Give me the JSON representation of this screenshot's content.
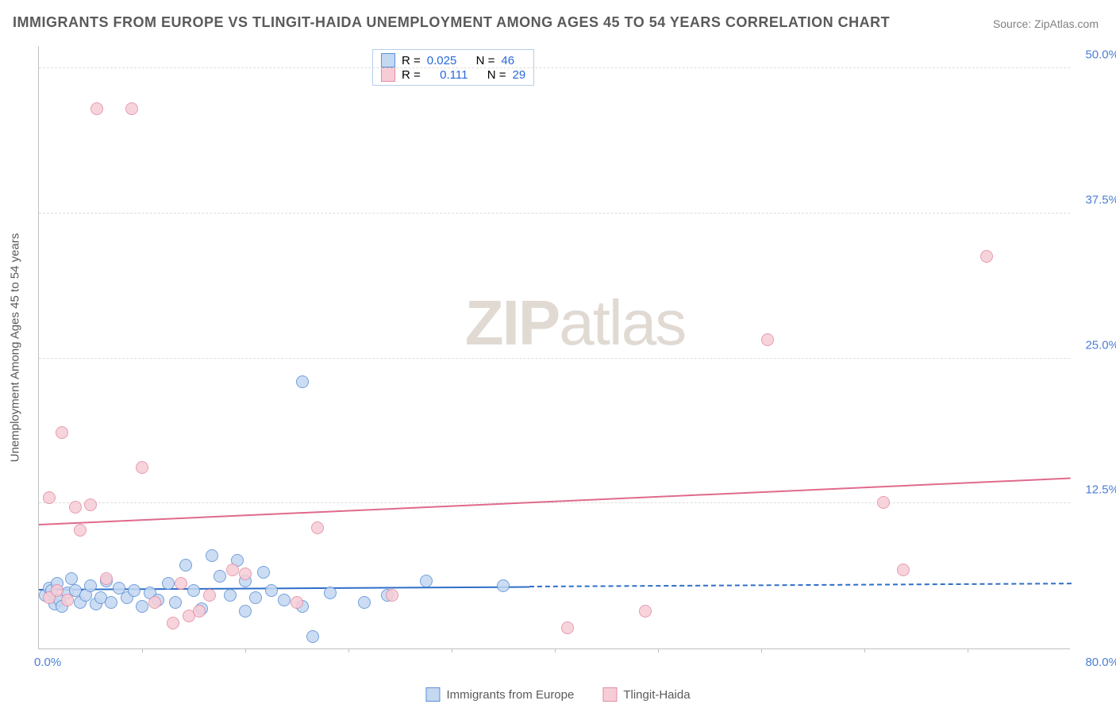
{
  "title": "IMMIGRANTS FROM EUROPE VS TLINGIT-HAIDA UNEMPLOYMENT AMONG AGES 45 TO 54 YEARS CORRELATION CHART",
  "source": "Source: ZipAtlas.com",
  "watermark_a": "ZIP",
  "watermark_b": "atlas",
  "chart": {
    "type": "scatter-with-regression",
    "y_axis_label": "Unemployment Among Ages 45 to 54 years",
    "xlim": [
      0,
      80
    ],
    "ylim": [
      0,
      52
    ],
    "x_origin_label": "0.0%",
    "x_max_label": "80.0%",
    "y_ticks": [
      {
        "value": 12.5,
        "label": "12.5%"
      },
      {
        "value": 25.0,
        "label": "25.0%"
      },
      {
        "value": 37.5,
        "label": "37.5%"
      },
      {
        "value": 50.0,
        "label": "50.0%"
      }
    ],
    "x_tick_positions": [
      8,
      16,
      24,
      32,
      40,
      48,
      56,
      64,
      72
    ],
    "background_color": "#ffffff",
    "grid_color": "#dddddd",
    "axis_color": "#c0c0c0",
    "tick_font_color": "#4a7fd6",
    "point_radius": 8,
    "series": [
      {
        "name": "Immigrants from Europe",
        "legend_label": "Immigrants from Europe",
        "fill": "#c4d8f2",
        "stroke": "#5b8fd6",
        "stats": {
          "R_label": "R =",
          "R": "0.025",
          "N_label": "N =",
          "N": "46"
        },
        "trend": {
          "x1": 0,
          "y1": 5.0,
          "x2": 80,
          "y2": 5.5,
          "solid_until_x": 38,
          "color": "#2f6fc9"
        },
        "points": [
          {
            "x": 0.5,
            "y": 4.6
          },
          {
            "x": 0.8,
            "y": 5.2
          },
          {
            "x": 1.0,
            "y": 5.0
          },
          {
            "x": 1.2,
            "y": 3.8
          },
          {
            "x": 1.4,
            "y": 5.6
          },
          {
            "x": 1.6,
            "y": 4.2
          },
          {
            "x": 1.8,
            "y": 3.6
          },
          {
            "x": 2.2,
            "y": 4.8
          },
          {
            "x": 2.5,
            "y": 6.0
          },
          {
            "x": 2.8,
            "y": 5.0
          },
          {
            "x": 3.2,
            "y": 4.0
          },
          {
            "x": 3.6,
            "y": 4.6
          },
          {
            "x": 4.0,
            "y": 5.4
          },
          {
            "x": 4.4,
            "y": 3.8
          },
          {
            "x": 4.8,
            "y": 4.4
          },
          {
            "x": 5.2,
            "y": 5.8
          },
          {
            "x": 5.6,
            "y": 4.0
          },
          {
            "x": 6.2,
            "y": 5.2
          },
          {
            "x": 6.8,
            "y": 4.4
          },
          {
            "x": 7.4,
            "y": 5.0
          },
          {
            "x": 8.0,
            "y": 3.6
          },
          {
            "x": 8.6,
            "y": 4.8
          },
          {
            "x": 9.2,
            "y": 4.2
          },
          {
            "x": 10.0,
            "y": 5.6
          },
          {
            "x": 10.6,
            "y": 4.0
          },
          {
            "x": 11.4,
            "y": 7.2
          },
          {
            "x": 12.0,
            "y": 5.0
          },
          {
            "x": 12.6,
            "y": 3.4
          },
          {
            "x": 13.4,
            "y": 8.0
          },
          {
            "x": 14.0,
            "y": 6.2
          },
          {
            "x": 14.8,
            "y": 4.6
          },
          {
            "x": 15.4,
            "y": 7.6
          },
          {
            "x": 16.0,
            "y": 3.2
          },
          {
            "x": 16.0,
            "y": 5.8
          },
          {
            "x": 16.8,
            "y": 4.4
          },
          {
            "x": 17.4,
            "y": 6.6
          },
          {
            "x": 18.0,
            "y": 5.0
          },
          {
            "x": 19.0,
            "y": 4.2
          },
          {
            "x": 20.4,
            "y": 3.6
          },
          {
            "x": 20.4,
            "y": 23.0
          },
          {
            "x": 21.2,
            "y": 1.0
          },
          {
            "x": 22.6,
            "y": 4.8
          },
          {
            "x": 25.2,
            "y": 4.0
          },
          {
            "x": 27.0,
            "y": 4.6
          },
          {
            "x": 30.0,
            "y": 5.8
          },
          {
            "x": 36.0,
            "y": 5.4
          }
        ]
      },
      {
        "name": "Tlingit-Haida",
        "legend_label": "Tlingit-Haida",
        "fill": "#f6cdd7",
        "stroke": "#e48aa2",
        "stats": {
          "R_label": "R =",
          "R": "0.111",
          "N_label": "N =",
          "N": "29"
        },
        "trend": {
          "x1": 0,
          "y1": 10.6,
          "x2": 80,
          "y2": 14.6,
          "solid_until_x": 80,
          "color": "#e06a8c"
        },
        "points": [
          {
            "x": 0.8,
            "y": 4.4
          },
          {
            "x": 0.8,
            "y": 13.0
          },
          {
            "x": 1.4,
            "y": 5.0
          },
          {
            "x": 1.8,
            "y": 18.6
          },
          {
            "x": 2.2,
            "y": 4.2
          },
          {
            "x": 2.8,
            "y": 12.2
          },
          {
            "x": 3.2,
            "y": 10.2
          },
          {
            "x": 4.0,
            "y": 12.4
          },
          {
            "x": 4.5,
            "y": 46.5
          },
          {
            "x": 5.2,
            "y": 6.0
          },
          {
            "x": 7.2,
            "y": 46.5
          },
          {
            "x": 8.0,
            "y": 15.6
          },
          {
            "x": 9.0,
            "y": 4.0
          },
          {
            "x": 10.4,
            "y": 2.2
          },
          {
            "x": 11.0,
            "y": 5.6
          },
          {
            "x": 11.6,
            "y": 2.8
          },
          {
            "x": 12.4,
            "y": 3.2
          },
          {
            "x": 13.2,
            "y": 4.6
          },
          {
            "x": 15.0,
            "y": 6.8
          },
          {
            "x": 16.0,
            "y": 6.4
          },
          {
            "x": 20.0,
            "y": 4.0
          },
          {
            "x": 21.6,
            "y": 10.4
          },
          {
            "x": 27.4,
            "y": 4.6
          },
          {
            "x": 41.0,
            "y": 1.8
          },
          {
            "x": 47.0,
            "y": 3.2
          },
          {
            "x": 56.5,
            "y": 26.6
          },
          {
            "x": 65.5,
            "y": 12.6
          },
          {
            "x": 67.0,
            "y": 6.8
          },
          {
            "x": 73.5,
            "y": 33.8
          }
        ]
      }
    ]
  },
  "legend": {
    "items": [
      {
        "label": "Immigrants from Europe",
        "fill": "#c4d8f2",
        "stroke": "#5b8fd6"
      },
      {
        "label": "Tlingit-Haida",
        "fill": "#f6cdd7",
        "stroke": "#e48aa2"
      }
    ]
  }
}
